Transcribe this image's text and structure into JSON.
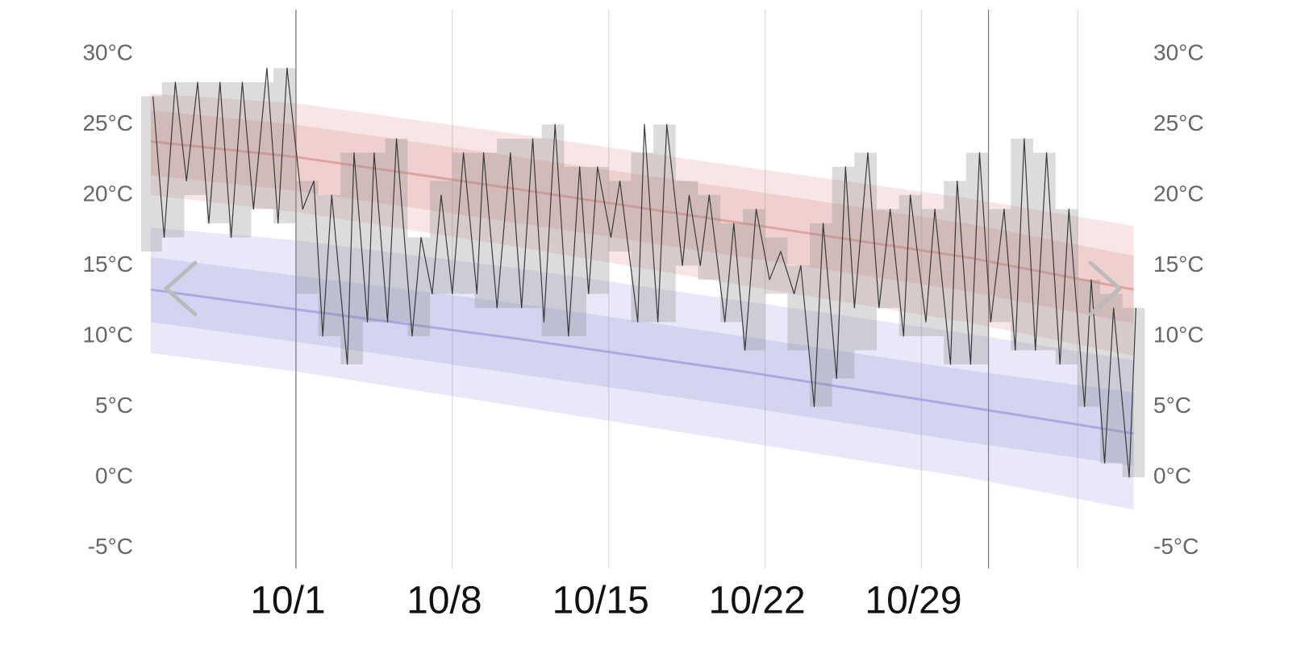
{
  "chart_data": {
    "type": "line",
    "xlim": [
      -6.93,
      38.02
    ],
    "ylim": [
      -6.46,
      33.14
    ],
    "xticks": [
      {
        "value": 0,
        "label": "10/1"
      },
      {
        "value": 7,
        "label": "10/8"
      },
      {
        "value": 14,
        "label": "10/15"
      },
      {
        "value": 21,
        "label": "10/22"
      },
      {
        "value": 28,
        "label": "10/29"
      },
      {
        "value": 35,
        "label": null
      }
    ],
    "month_lines": [
      0,
      31
    ],
    "yticks": [
      {
        "value": 30,
        "label": "30°C"
      },
      {
        "value": 25,
        "label": "25°C"
      },
      {
        "value": 20,
        "label": "20°C"
      },
      {
        "value": 15,
        "label": "15°C"
      },
      {
        "value": 10,
        "label": "10°C"
      },
      {
        "value": 5,
        "label": "5°C"
      },
      {
        "value": 0,
        "label": "0°C"
      },
      {
        "value": -5,
        "label": "-5°C"
      }
    ],
    "grid": true,
    "normals": {
      "x": [
        -6.5,
        0,
        10,
        20,
        30,
        37.5
      ],
      "high": {
        "color": "#d9847f",
        "mean": [
          23.8,
          22.7,
          20.4,
          18.0,
          15.6,
          13.3
        ],
        "inner_upper": [
          26.0,
          25.0,
          22.7,
          20.4,
          18.0,
          15.7
        ],
        "inner_lower": [
          21.4,
          20.3,
          18.0,
          15.6,
          13.2,
          10.9
        ],
        "outer_upper": [
          27.2,
          26.5,
          24.3,
          22.0,
          19.8,
          17.8
        ],
        "outer_lower": [
          20.0,
          18.8,
          16.3,
          13.6,
          11.0,
          8.6
        ]
      },
      "low": {
        "color": "#8c8cdc",
        "mean": [
          13.3,
          11.9,
          9.8,
          7.5,
          5.0,
          3.1
        ],
        "inner_upper": [
          15.6,
          14.3,
          12.3,
          10.0,
          7.6,
          6.0
        ],
        "inner_lower": [
          11.0,
          9.6,
          7.3,
          5.0,
          2.5,
          0.8
        ],
        "outer_upper": [
          17.7,
          16.8,
          14.8,
          12.5,
          10.2,
          8.3
        ],
        "outer_lower": [
          8.8,
          7.5,
          5.0,
          2.5,
          0.0,
          -2.3
        ]
      }
    },
    "daily_range": {
      "color": "#8a8a8a",
      "x": [
        -7,
        -6,
        -5,
        -4,
        -3,
        -2,
        -1,
        0,
        1,
        2,
        3,
        4,
        5,
        6,
        7,
        8,
        9,
        10,
        11,
        12,
        13,
        14,
        15,
        16,
        17,
        18,
        19,
        20,
        21,
        22,
        23,
        24,
        25,
        26,
        27,
        28,
        29,
        30,
        31,
        32,
        33,
        34,
        35,
        36,
        37
      ],
      "low": [
        16,
        17,
        20,
        18,
        17,
        19,
        18,
        13,
        10,
        8,
        11,
        11,
        10,
        13,
        13,
        12,
        12,
        12,
        10,
        10,
        13,
        16,
        11,
        11,
        15,
        14,
        11,
        9,
        13,
        9,
        5,
        7,
        9,
        12,
        10,
        10,
        8,
        8,
        11,
        9,
        9,
        8,
        5,
        1,
        0
      ],
      "high": [
        27,
        28,
        28,
        28,
        28,
        28,
        29,
        21,
        20,
        23,
        23,
        24,
        17,
        21,
        23,
        23,
        24,
        24,
        25,
        22,
        22,
        21,
        23,
        25,
        21,
        20,
        18,
        19,
        17,
        15,
        18,
        22,
        23,
        19,
        20,
        19,
        21,
        23,
        19,
        24,
        23,
        19,
        14,
        13,
        12
      ]
    },
    "series": [
      {
        "color": "#3a3a3a",
        "x": [
          -6.4,
          -5.9,
          -5.4,
          -4.9,
          -4.4,
          -3.9,
          -3.4,
          -2.9,
          -2.4,
          -1.9,
          -1.3,
          -0.8,
          -0.4,
          0.3,
          0.8,
          1.2,
          1.6,
          2.3,
          2.6,
          3.2,
          3.5,
          4.1,
          4.5,
          5.2,
          5.6,
          6.1,
          6.5,
          7.0,
          7.5,
          8.1,
          8.4,
          9.0,
          9.6,
          10.1,
          10.6,
          11.1,
          11.6,
          12.2,
          12.7,
          13.1,
          13.5,
          14.1,
          14.5,
          15.3,
          15.6,
          16.2,
          16.6,
          17.3,
          17.6,
          18.1,
          18.5,
          19.2,
          19.6,
          20.1,
          20.6,
          21.2,
          21.7,
          22.3,
          22.6,
          23.2,
          23.6,
          24.2,
          24.6,
          25.0,
          25.6,
          26.1,
          26.6,
          27.2,
          27.5,
          28.2,
          28.6,
          29.3,
          29.6,
          30.2,
          30.6,
          31.1,
          31.7,
          32.2,
          32.6,
          33.1,
          33.6,
          34.2,
          34.6,
          35.3,
          35.6,
          36.2,
          36.6,
          37.3,
          37.6
        ],
        "values": [
          27,
          17,
          28,
          21,
          28,
          18,
          28,
          17,
          28,
          19,
          29,
          18,
          29,
          19,
          21,
          10,
          20,
          8,
          23,
          11,
          23,
          11,
          24,
          10,
          17,
          13,
          20,
          13,
          23,
          13,
          23,
          12,
          23,
          12,
          24,
          11,
          25,
          10,
          22,
          13,
          22,
          17,
          21,
          11,
          25,
          11,
          25,
          15,
          20,
          15,
          20,
          11,
          18,
          9,
          19,
          14,
          16,
          13,
          15,
          5,
          18,
          7,
          22,
          12,
          23,
          12,
          19,
          10,
          20,
          11,
          19,
          8,
          21,
          8,
          23,
          11,
          19,
          9,
          24,
          9,
          23,
          8,
          19,
          5,
          14,
          1,
          12,
          0,
          12
        ]
      }
    ]
  }
}
